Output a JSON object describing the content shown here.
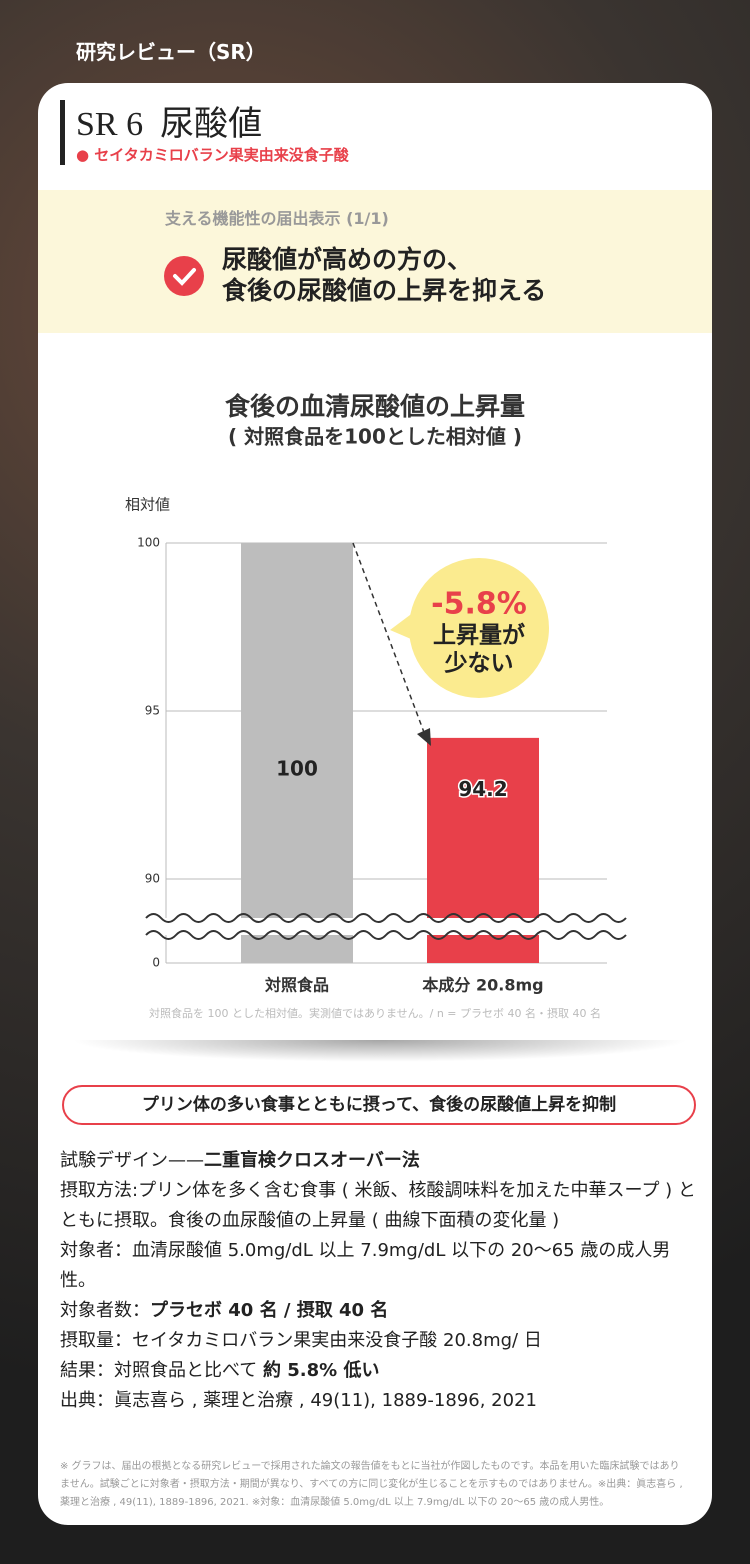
{
  "header": {
    "section": "研究レビュー（SR）"
  },
  "card": {
    "title": "SR 6  尿酸値",
    "subtitle": "● セイタカミロバラン果実由来没食子酸",
    "claim": {
      "label": "支える機能性の届出表示 (1/1)",
      "lines": [
        "尿酸値が高めの方の、",
        "食後の尿酸値の上昇を抑える"
      ]
    }
  },
  "chart_data": {
    "type": "bar",
    "title": "食後の血清尿酸値の上昇量",
    "subtitle": "( 対照食品を100とした相対値 )",
    "y_label": "相対値",
    "categories": [
      "対照食品",
      "本成分 20.8mg"
    ],
    "values": [
      100,
      94.2
    ],
    "colors": [
      "#bdbdbd",
      "#e8404a"
    ],
    "ylim": [
      0,
      100
    ],
    "yticks": [
      0,
      90,
      95,
      100
    ],
    "grid": true,
    "axis_break": true,
    "annotations": [
      "-5.8%",
      "上昇量が",
      "少ない"
    ],
    "note": "対照食品を 100 とした相対値。実測値ではありません。/ n = プラセボ 40 名・摂取 40 名"
  },
  "summary": "プリン体の多い食事とともに摂って、食後の尿酸値上昇を抑制",
  "details": [
    {
      "text": "試験デザイン——",
      "bold": "二重盲検クロスオーバー法"
    },
    {
      "text": "摂取方法:プリン体を多く含む食事 ( 米飯、核酸調味料を加えた中華スープ ) とともに摂取。食後の血尿酸値の上昇量 ( 曲線下面積の変化量 )"
    },
    {
      "text": "対象者：血清尿酸値 5.0mg/dL 以上 7.9mg/dL 以下の 20～65 歳の成人男性。"
    },
    {
      "text": "対象者数：",
      "bold": "プラセボ 40 名 / 摂取 40 名"
    },
    {
      "text": "摂取量：セイタカミロバラン果実由来没食子酸 20.8mg/ 日"
    },
    {
      "text": "結果：対照食品と比べて ",
      "bold": "約 5.8% 低い"
    },
    {
      "text": "出典：眞志喜ら , 薬理と治療 , 49(11), 1889-1896, 2021"
    }
  ],
  "fine_print": "※ グラフは、届出の根拠となる研究レビューで採用された論文の報告値をもとに当社が作図したものです。本品を用いた臨床試験ではありません。試験ごとに対象者・摂取方法・期間が異なり、すべての方に同じ変化が生じることを示すものではありません。※出典：眞志喜ら , 薬理と治療 , 49(11), 1889-1896, 2021. ※対象：血清尿酸値 5.0mg/dL 以上 7.9mg/dL 以下の 20～65 歳の成人男性。"
}
